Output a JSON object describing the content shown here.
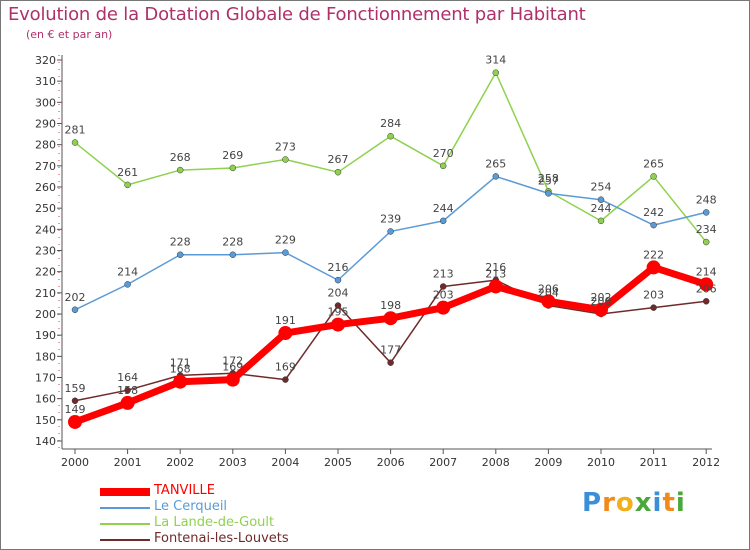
{
  "title": "Evolution de la Dotation Globale de Fonctionnement par Habitant",
  "subtitle": "(en € et par an)",
  "logo": {
    "letters": [
      "P",
      "r",
      "o",
      "x",
      "i",
      "t",
      "i"
    ],
    "colors": [
      "#3a8fd8",
      "#f08a1c",
      "#f0b01c",
      "#4aa83a",
      "#3a8fd8",
      "#f08a1c",
      "#4aa83a"
    ]
  },
  "chart_data": {
    "type": "line",
    "title": "Evolution de la Dotation Globale de Fonctionnement par Habitant",
    "ylabel": "(en € et par an)",
    "xlabel": "",
    "ylim": [
      140,
      320
    ],
    "yticks": [
      140,
      150,
      160,
      170,
      180,
      190,
      200,
      210,
      220,
      230,
      240,
      250,
      260,
      270,
      280,
      290,
      300,
      310,
      320
    ],
    "categories": [
      "2000",
      "2001",
      "2002",
      "2003",
      "2004",
      "2005",
      "2006",
      "2007",
      "2008",
      "2009",
      "2010",
      "2011",
      "2012"
    ],
    "grid": false,
    "legend": "bottom-left",
    "series": [
      {
        "name": "La Lande-de-Goult",
        "color": "#8fd14f",
        "values": [
          281,
          261,
          268,
          269,
          273,
          267,
          284,
          270,
          314,
          258,
          244,
          265,
          234
        ]
      },
      {
        "name": "Le Cerqueil",
        "color": "#5b9bd5",
        "values": [
          202,
          214,
          228,
          228,
          229,
          216,
          239,
          244,
          265,
          257,
          254,
          242,
          248
        ]
      },
      {
        "name": "Fontenai-les-Louvets",
        "color": "#702a2a",
        "values": [
          159,
          164,
          171,
          172,
          169,
          204,
          177,
          213,
          216,
          204,
          200,
          203,
          206
        ]
      },
      {
        "name": "TANVILLE",
        "color": "#ff0000",
        "values": [
          149,
          158,
          168,
          169,
          191,
          195,
          198,
          203,
          213,
          206,
          202,
          222,
          214
        ]
      }
    ],
    "legend_order": [
      "TANVILLE",
      "Le Cerqueil",
      "La Lande-de-Goult",
      "Fontenai-les-Louvets"
    ]
  }
}
